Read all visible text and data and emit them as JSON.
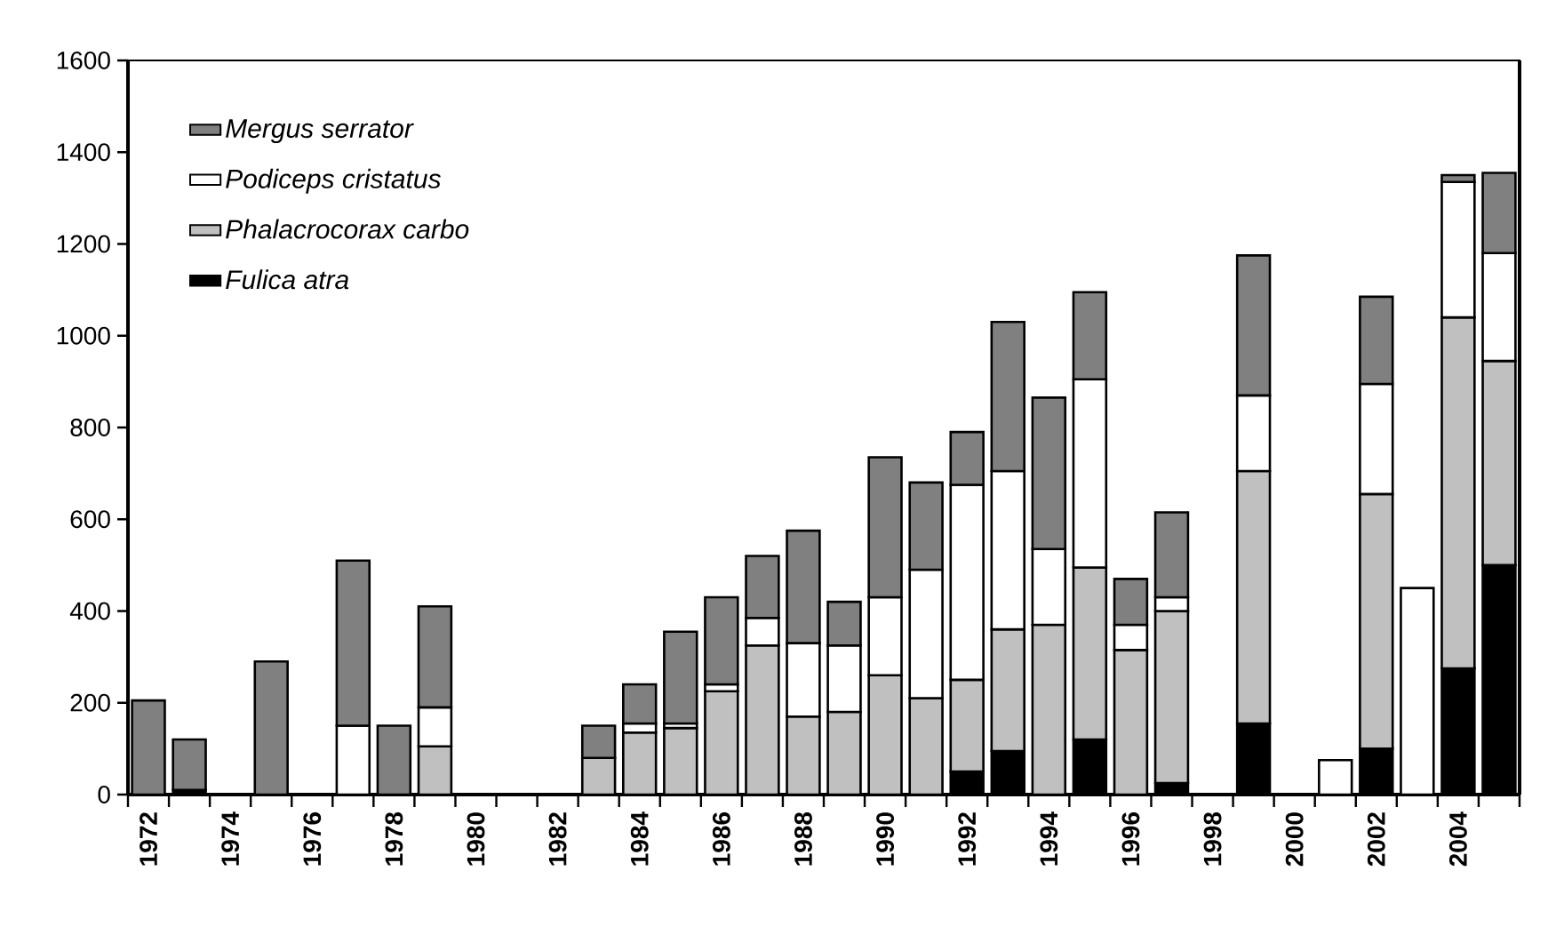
{
  "chart_data": {
    "type": "bar",
    "stacked": true,
    "categories": [
      "1972",
      null,
      "1974",
      null,
      "1976",
      null,
      "1978",
      null,
      "1980",
      null,
      "1982",
      null,
      "1984",
      null,
      "1986",
      null,
      "1988",
      null,
      "1990",
      null,
      "1992",
      null,
      "1994",
      null,
      "1996",
      null,
      "1998",
      null,
      "2000",
      null,
      "2002",
      null,
      "2004",
      null
    ],
    "series": [
      {
        "name": "Fulica atra",
        "color": "#000000",
        "values": [
          null,
          10,
          null,
          null,
          null,
          null,
          null,
          null,
          null,
          null,
          null,
          null,
          null,
          null,
          null,
          null,
          null,
          null,
          null,
          null,
          50,
          95,
          null,
          120,
          null,
          25,
          null,
          155,
          null,
          null,
          100,
          null,
          275,
          500
        ]
      },
      {
        "name": "Phalacrocorax carbo",
        "color": "#c0c0c0",
        "values": [
          null,
          null,
          null,
          null,
          null,
          null,
          null,
          105,
          null,
          null,
          null,
          80,
          135,
          145,
          225,
          325,
          170,
          180,
          260,
          210,
          200,
          265,
          370,
          375,
          315,
          375,
          null,
          550,
          null,
          null,
          555,
          null,
          765,
          445
        ]
      },
      {
        "name": "Podiceps cristatus",
        "color": "#ffffff",
        "values": [
          null,
          null,
          null,
          null,
          null,
          150,
          null,
          85,
          null,
          null,
          null,
          null,
          20,
          10,
          15,
          60,
          160,
          145,
          170,
          280,
          425,
          345,
          165,
          410,
          55,
          30,
          null,
          165,
          null,
          75,
          240,
          450,
          295,
          235
        ]
      },
      {
        "name": "Mergus serrator",
        "color": "#808080",
        "values": [
          205,
          110,
          null,
          290,
          null,
          360,
          150,
          220,
          null,
          null,
          null,
          70,
          85,
          200,
          190,
          135,
          245,
          95,
          305,
          190,
          115,
          325,
          330,
          190,
          100,
          185,
          null,
          305,
          null,
          null,
          190,
          null,
          15,
          175
        ]
      }
    ],
    "ylim": [
      0,
      1600
    ],
    "yticks": [
      0,
      200,
      400,
      600,
      800,
      1000,
      1200,
      1400,
      1600
    ],
    "legend": "top left",
    "grid": false
  }
}
